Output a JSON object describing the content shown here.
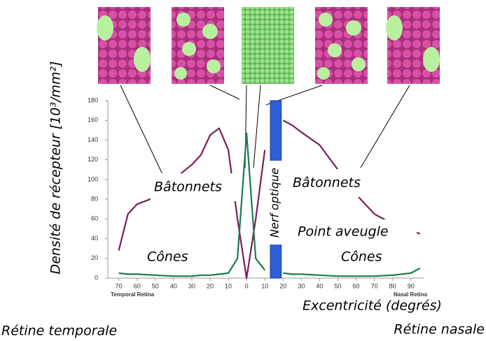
{
  "chart_data": {
    "type": "line",
    "y_label": "Densité de récepteur [10³/mm²]",
    "x_label": "Excentricité (degrés)",
    "left_label": "Rétine temporale",
    "right_label": "Rétine nasale",
    "left_axis_note": "Temporal Retina",
    "right_axis_note": "Nasal Retina",
    "annotations": [
      "Bâtonnets",
      "Bâtonnets",
      "Cônes",
      "Cônes",
      "Nerf optique",
      "Point  aveugle"
    ],
    "x": [
      -70,
      -65,
      -60,
      -50,
      -40,
      -30,
      -25,
      -20,
      -15,
      -10,
      -5,
      0,
      5,
      10,
      15,
      20,
      25,
      30,
      40,
      50,
      60,
      70,
      80,
      90,
      95
    ],
    "series": [
      {
        "name": "Bâtonnets",
        "color": "#7a1f58",
        "values": [
          28,
          65,
          75,
          82,
          100,
          115,
          125,
          145,
          152,
          130,
          60,
          0,
          60,
          130,
          null,
          160,
          155,
          148,
          135,
          110,
          85,
          65,
          55,
          48,
          45
        ]
      },
      {
        "name": "Cônes",
        "color": "#1e7a4e",
        "values": [
          5,
          4,
          4,
          3,
          2,
          2,
          3,
          3,
          4,
          5,
          20,
          147,
          20,
          8,
          null,
          5,
          4,
          4,
          3,
          2,
          2,
          2,
          3,
          5,
          10
        ]
      }
    ],
    "blind_spot": [
      13,
      19
    ],
    "blind_spot_color": "#2c5fd8",
    "xlim": [
      -76,
      97
    ],
    "ylim": [
      0,
      180
    ],
    "xticks": [
      {
        "value": -70,
        "label": "70"
      },
      {
        "value": -60,
        "label": "60"
      },
      {
        "value": -50,
        "label": "50"
      },
      {
        "value": -40,
        "label": "40"
      },
      {
        "value": -30,
        "label": "30"
      },
      {
        "value": -20,
        "label": "20"
      },
      {
        "value": -10,
        "label": "10"
      },
      0,
      10,
      20,
      30,
      40,
      50,
      60,
      70,
      80,
      90
    ],
    "yticks": [
      0,
      20,
      40,
      60,
      80,
      100,
      120,
      140,
      160,
      180
    ]
  }
}
